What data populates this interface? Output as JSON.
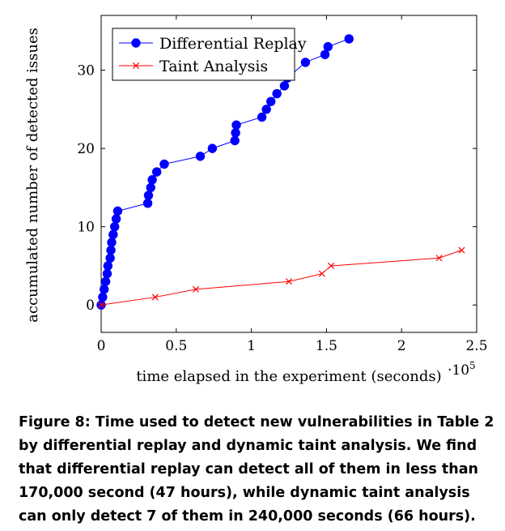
{
  "chart_data": {
    "type": "line",
    "xlabel": "time elapsed in the experiment (seconds)",
    "x_scale_label": "·10",
    "x_scale_exp": "5",
    "ylabel": "accumulated number of detected issues",
    "xlim": [
      0,
      2.5
    ],
    "ylim": [
      -3.5,
      37
    ],
    "x_ticks": [
      0,
      0.5,
      1,
      1.5,
      2,
      2.5
    ],
    "x_tick_labels": [
      "0",
      "0.5",
      "1",
      "1.5",
      "2",
      "2.5"
    ],
    "y_ticks": [
      0,
      10,
      20,
      30
    ],
    "y_tick_labels": [
      "0",
      "10",
      "20",
      "30"
    ],
    "grid": false,
    "legend_position": "top-left",
    "series": [
      {
        "name": "Differential Replay",
        "color": "#0000ff",
        "marker": "circle",
        "x": [
          0.0,
          0.01,
          0.02,
          0.03,
          0.04,
          0.045,
          0.06,
          0.065,
          0.07,
          0.08,
          0.09,
          0.1,
          0.11,
          0.31,
          0.315,
          0.33,
          0.34,
          0.37,
          0.42,
          0.66,
          0.74,
          0.89,
          0.895,
          0.9,
          1.07,
          1.1,
          1.13,
          1.17,
          1.22,
          1.24,
          1.36,
          1.49,
          1.51,
          1.65
        ],
        "y": [
          0,
          1,
          2,
          3,
          4,
          5,
          6,
          7,
          8,
          9,
          10,
          11,
          12,
          13,
          14,
          15,
          16,
          17,
          18,
          19,
          20,
          21,
          22,
          23,
          24,
          25,
          26,
          27,
          28,
          29,
          31,
          32,
          33,
          34
        ]
      },
      {
        "name": "Taint Analysis",
        "color": "#ff0000",
        "marker": "x",
        "x": [
          0.0,
          0.36,
          0.63,
          1.25,
          1.47,
          1.53,
          2.25,
          2.4
        ],
        "y": [
          0,
          1,
          2,
          3,
          4,
          5,
          6,
          7
        ]
      }
    ]
  },
  "caption": "Figure 8: Time used to detect new vulnerabilities in Table 2 by differential replay and dynamic taint analysis. We find that differential replay can detect all of them in less than 170,000 second (47 hours), while dynamic taint analysis can only detect 7 of them in 240,000 seconds (66 hours)."
}
